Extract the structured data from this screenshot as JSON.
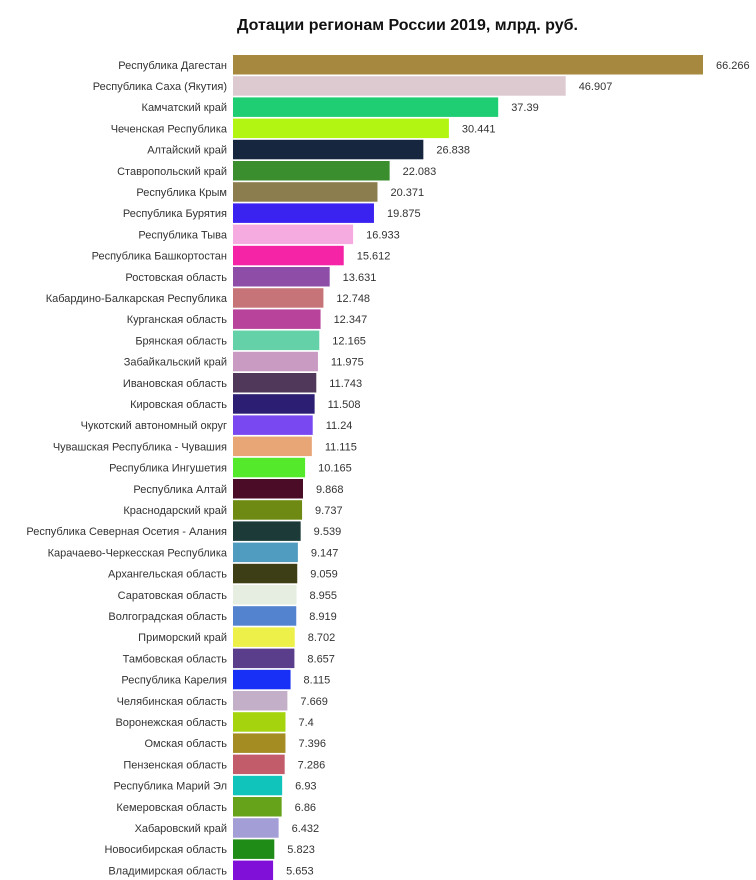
{
  "chart_data": {
    "type": "bar",
    "orientation": "horizontal",
    "title": "Дотации регионам России 2019, млрд. руб.",
    "xlabel": "",
    "ylabel": "",
    "grid": false,
    "value_labels": true,
    "xlim": [
      0,
      66.266
    ],
    "categories": [
      "Республика Дагестан",
      "Республика Саха (Якутия)",
      "Камчатский край",
      "Чеченская Республика",
      "Алтайский край",
      "Ставропольский край",
      "Республика Крым",
      "Республика Бурятия",
      "Республика Тыва",
      "Республика Башкортостан",
      "Ростовская область",
      "Кабардино-Балкарская Республика",
      "Курганская область",
      "Брянская область",
      "Забайкальский край",
      "Ивановская область",
      "Кировская область",
      "Чукотский автономный округ",
      "Чувашская Республика - Чувашия",
      "Республика Ингушетия",
      "Республика Алтай",
      "Краснодарский край",
      "Республика Северная Осетия - Алания",
      "Карачаево-Черкесская Республика",
      "Архангельская область",
      "Саратовская область",
      "Волгоградская область",
      "Приморский край",
      "Тамбовская область",
      "Республика Карелия",
      "Челябинская область",
      "Воронежская область",
      "Омская область",
      "Пензенская область",
      "Республика Марий Эл",
      "Кемеровская область",
      "Хабаровский край",
      "Новосибирская область",
      "Владимирская область"
    ],
    "values": [
      66.266,
      46.907,
      37.39,
      30.441,
      26.838,
      22.083,
      20.371,
      19.875,
      16.933,
      15.612,
      13.631,
      12.748,
      12.347,
      12.165,
      11.975,
      11.743,
      11.508,
      11.24,
      11.115,
      10.165,
      9.868,
      9.737,
      9.539,
      9.147,
      9.059,
      8.955,
      8.919,
      8.702,
      8.657,
      8.115,
      7.669,
      7.4,
      7.396,
      7.286,
      6.93,
      6.86,
      6.432,
      5.823,
      5.653
    ],
    "colors": [
      "#A6893E",
      "#DDC9D0",
      "#1FCE72",
      "#B2F512",
      "#17263F",
      "#3A8E2E",
      "#8C7D4E",
      "#3A22F0",
      "#F5AAE0",
      "#F523A6",
      "#8E4EA8",
      "#C77478",
      "#B7449A",
      "#64D1A8",
      "#C99AC2",
      "#4F3859",
      "#2C1E72",
      "#7A48F0",
      "#E8A676",
      "#55E92C",
      "#4A0C26",
      "#6E8A12",
      "#1B3A38",
      "#4F9CC0",
      "#3E3E16",
      "#E6EEE2",
      "#5383CE",
      "#ECF048",
      "#5A3E8C",
      "#1830F5",
      "#C3AFC8",
      "#A5D40E",
      "#A48C22",
      "#C25C6A",
      "#10C4BB",
      "#66A21A",
      "#A39ED6",
      "#1E8C16",
      "#8010D8"
    ]
  }
}
